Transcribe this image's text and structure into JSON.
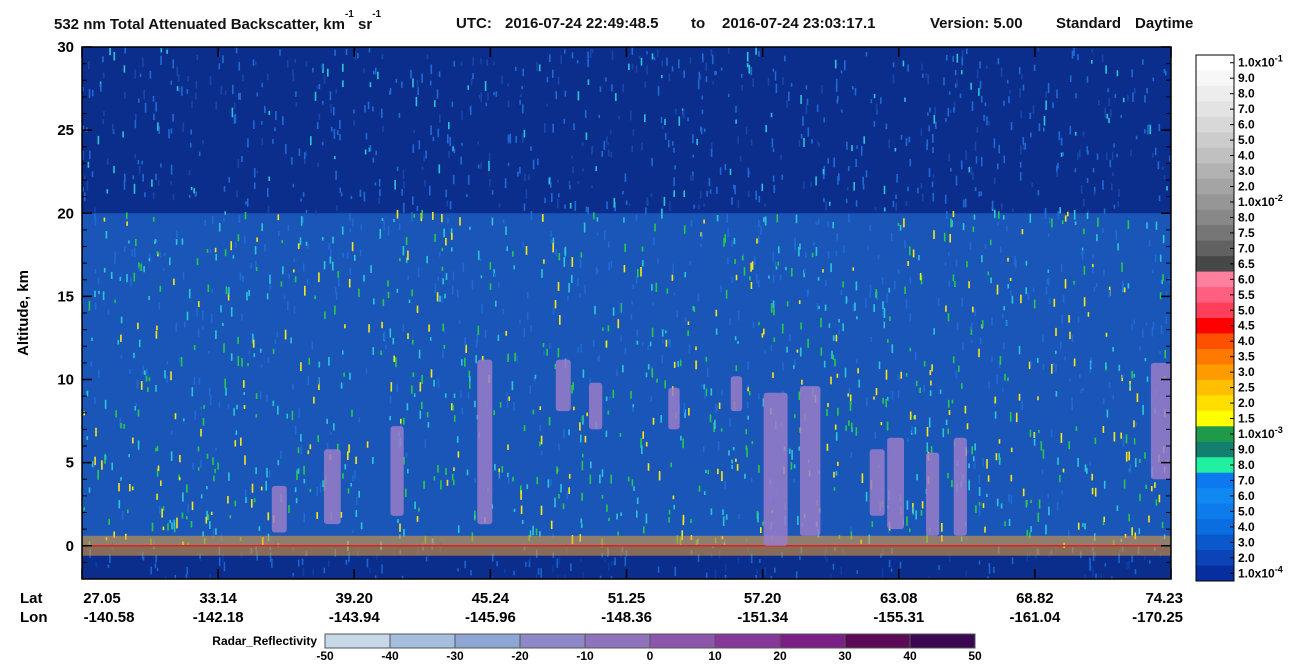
{
  "header": {
    "product_title": "532 nm Total Attenuated Backscatter, km",
    "unit_km_exp": "-1",
    "unit_sr": " sr",
    "unit_sr_exp": "-1",
    "utc_label": "UTC:",
    "start_time": "2016-07-24 22:49:48.5",
    "to_label": "to",
    "end_time": "2016-07-24 23:03:17.1",
    "version_label": "Version: 5.00",
    "mode_label": "Standard",
    "daytime_label": "Daytime"
  },
  "chart_data": {
    "type": "heatmap",
    "title": "532 nm Total Attenuated Backscatter, km-1 sr-1",
    "ylabel": "Altitude, km",
    "ylim": [
      -2,
      30
    ],
    "yticks": [
      "30",
      "25",
      "20",
      "15",
      "10",
      "5",
      "0"
    ],
    "ytick_values": [
      30,
      25,
      20,
      15,
      10,
      5,
      0
    ],
    "x_row_labels": [
      "Lat",
      "Lon"
    ],
    "x_ticks": [
      {
        "lat": "27.05",
        "lon": "-140.58"
      },
      {
        "lat": "33.14",
        "lon": "-142.18"
      },
      {
        "lat": "39.20",
        "lon": "-143.94"
      },
      {
        "lat": "45.24",
        "lon": "-145.96"
      },
      {
        "lat": "51.25",
        "lon": "-148.36"
      },
      {
        "lat": "57.20",
        "lon": "-151.34"
      },
      {
        "lat": "63.08",
        "lon": "-155.31"
      },
      {
        "lat": "68.82",
        "lon": "-161.04"
      },
      {
        "lat": "74.23",
        "lon": "-170.25"
      }
    ],
    "colorbar": {
      "labels": [
        "1.0x10-1",
        "9.0",
        "8.0",
        "7.0",
        "6.0",
        "5.0",
        "4.0",
        "3.0",
        "2.0",
        "1.0x10-2",
        "8.0",
        "7.5",
        "7.0",
        "6.5",
        "6.0",
        "5.5",
        "5.0",
        "4.5",
        "4.0",
        "3.5",
        "3.0",
        "2.5",
        "2.0",
        "1.5",
        "1.0x10-3",
        "9.0",
        "8.0",
        "7.0",
        "6.0",
        "5.0",
        "4.0",
        "3.0",
        "2.0",
        "1.0x10-4"
      ],
      "colors": [
        "#ffffff",
        "#f7f7f7",
        "#ededed",
        "#e3e3e3",
        "#d8d8d8",
        "#cccccc",
        "#c0c0c0",
        "#b2b2b2",
        "#a4a4a4",
        "#969696",
        "#888888",
        "#767676",
        "#616161",
        "#474747",
        "#ff7fa0",
        "#ff5f80",
        "#ff3f5a",
        "#ff0000",
        "#ff5000",
        "#ff7800",
        "#ff9a00",
        "#ffbe00",
        "#ffde00",
        "#ffff00",
        "#1f9a4a",
        "#137f6e",
        "#20f0a0",
        "#0e78f0",
        "#0f88f2",
        "#0d7bec",
        "#0b6ee0",
        "#0959cc",
        "#0a44b8",
        "#072e9e"
      ]
    },
    "radar_colorbar": {
      "label": "Radar_Reflectivity",
      "ticks": [
        "-50",
        "-40",
        "-30",
        "-20",
        "-10",
        "0",
        "10",
        "20",
        "30",
        "40",
        "50"
      ],
      "colors": [
        "#c6d9e9",
        "#a6bfdf",
        "#8ea6d3",
        "#8e88c8",
        "#8f72bc",
        "#8b56ac",
        "#86389a",
        "#7a1f86",
        "#5c0a58",
        "#3a0850"
      ]
    },
    "features": [
      {
        "name": "surface return",
        "altitude_km": 0
      },
      {
        "name": "stratospheric noise boundary",
        "altitude_km": 20
      },
      {
        "name": "high cloud",
        "lat": 57.2,
        "altitude_km": [
          0,
          9.5
        ]
      },
      {
        "name": "deep convective cloud",
        "lat": 74.0,
        "altitude_km": [
          4,
          11.5
        ]
      }
    ]
  },
  "colors": {
    "background_deep": "#0b2d8c",
    "noise_blue": "#1e6bd6",
    "noise_cyan": "#2cc5d8",
    "noise_green": "#28c850",
    "noise_yellow": "#f5e81a",
    "radar_purple": "#9a7cc8"
  }
}
